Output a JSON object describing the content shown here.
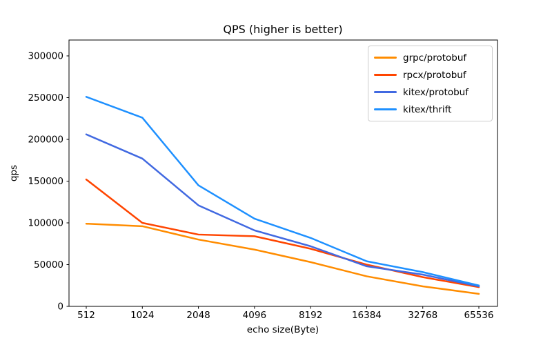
{
  "figure": {
    "background": "#ffffff",
    "axes_color": "#000000",
    "legend_border_color": "#cccccc"
  },
  "chart_data": {
    "type": "line",
    "title": "QPS (higher is better)",
    "xlabel": "echo size(Byte)",
    "ylabel": "qps",
    "categories": [
      "512",
      "1024",
      "2048",
      "4096",
      "8192",
      "16384",
      "32768",
      "65536"
    ],
    "series": [
      {
        "name": "grpc/protobuf",
        "color": "#ff8c00",
        "values": [
          99000,
          96000,
          80000,
          68000,
          53000,
          36000,
          24000,
          15000
        ]
      },
      {
        "name": "rpcx/protobuf",
        "color": "#ff4500",
        "values": [
          152000,
          100000,
          86000,
          84000,
          69000,
          50000,
          35000,
          23000
        ]
      },
      {
        "name": "kitex/protobuf",
        "color": "#4169e1",
        "values": [
          206000,
          177000,
          121000,
          91000,
          72000,
          48000,
          38000,
          24000
        ]
      },
      {
        "name": "kitex/thrift",
        "color": "#1e90ff",
        "values": [
          251000,
          226000,
          145000,
          105000,
          82000,
          54000,
          41000,
          25000
        ]
      }
    ],
    "yticks": [
      0,
      50000,
      100000,
      150000,
      200000,
      250000,
      300000
    ],
    "ylim": [
      0,
      319000
    ],
    "x_scale": "log2-categorical",
    "grid": false,
    "legend_position": "upper right",
    "line_width": 2.5
  }
}
